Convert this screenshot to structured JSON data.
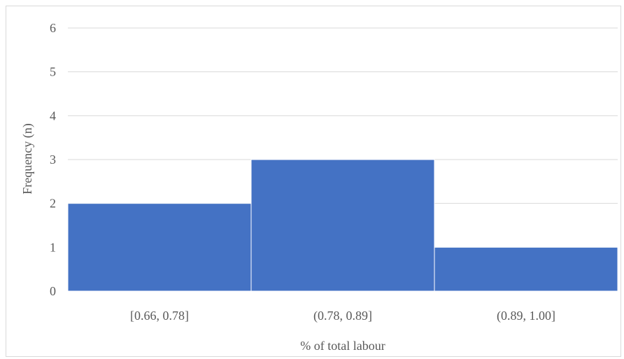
{
  "chart_data": {
    "type": "bar",
    "title": "",
    "xlabel": "% of total labour",
    "ylabel": "Frequency (n)",
    "categories": [
      "[0.66, 0.78]",
      "(0.78, 0.89]",
      "(0.89, 1.00]"
    ],
    "values": [
      2,
      3,
      1
    ],
    "ylim": [
      0,
      6
    ],
    "yticks": [
      "0",
      "1",
      "2",
      "3",
      "4",
      "5",
      "6"
    ],
    "grid": true,
    "legend": "none",
    "bar_color": "#4472C4",
    "gridline_color": "#d9d9d9",
    "text_color": "#595959"
  }
}
